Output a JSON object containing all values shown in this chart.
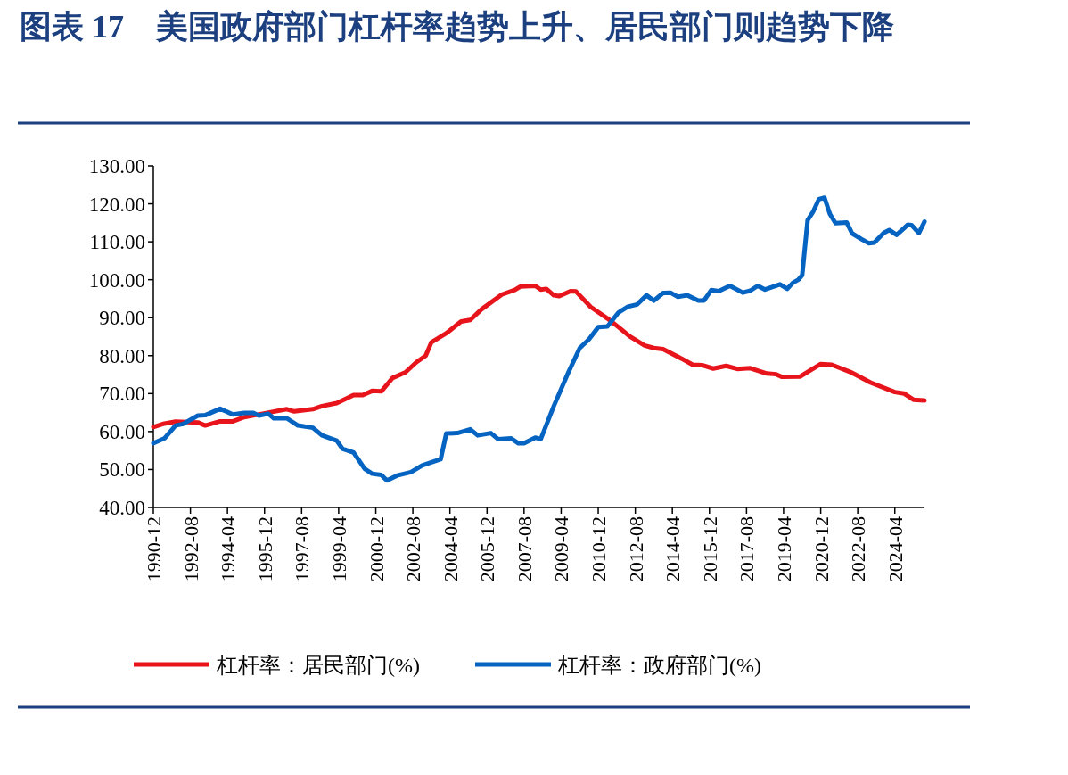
{
  "chart_data": {
    "type": "line",
    "title": "图表 17　美国政府部门杠杆率趋势上升、居民部门则趋势下降",
    "series": [
      {
        "name": "杠杆率：居民部门(%)",
        "color": "#e8141c",
        "x": [
          "1990-12",
          "1991-06",
          "1991-12",
          "1992-12",
          "1993-04",
          "1993-12",
          "1994-07",
          "1995-01",
          "1995-11",
          "1996-12",
          "1997-04",
          "1998-02",
          "1998-07",
          "1999-03",
          "1999-12",
          "2000-05",
          "2000-10",
          "2001-03",
          "2001-09",
          "2002-04",
          "2002-10",
          "2003-03",
          "2003-06",
          "2004-02",
          "2004-10",
          "2005-03",
          "2005-09",
          "2006-08",
          "2007-03",
          "2007-06",
          "2008-02",
          "2008-05",
          "2008-08",
          "2008-12",
          "2009-03",
          "2009-09",
          "2009-12",
          "2010-08",
          "2011-05",
          "2011-11",
          "2012-05",
          "2013-01",
          "2013-06",
          "2013-11",
          "2014-09",
          "2015-03",
          "2015-08",
          "2016-02",
          "2016-09",
          "2017-03",
          "2017-10",
          "2018-07",
          "2018-12",
          "2019-03",
          "2020-01",
          "2020-12",
          "2021-06",
          "2022-04",
          "2023-03",
          "2024-04",
          "2024-09",
          "2025-02",
          "2025-08"
        ],
        "values": [
          61.2,
          62.1,
          62.6,
          62.4,
          61.6,
          62.7,
          62.7,
          63.8,
          64.7,
          65.9,
          65.3,
          65.9,
          66.7,
          67.5,
          69.6,
          69.6,
          70.7,
          70.6,
          74.1,
          75.6,
          78.3,
          80.0,
          83.5,
          85.9,
          89.0,
          89.4,
          92.2,
          96.1,
          97.3,
          98.2,
          98.4,
          97.4,
          97.6,
          95.9,
          95.7,
          97.0,
          96.9,
          92.8,
          89.8,
          87.5,
          85.1,
          82.7,
          82.0,
          81.7,
          79.2,
          77.6,
          77.5,
          76.6,
          77.3,
          76.5,
          76.7,
          75.3,
          75.1,
          74.4,
          74.5,
          77.8,
          77.6,
          75.7,
          72.9,
          70.4,
          70.0,
          68.4,
          68.2
        ]
      },
      {
        "name": "杠杆率：政府部门(%)",
        "color": "#0563c1",
        "x": [
          "1990-12",
          "1991-06",
          "1991-12",
          "1992-04",
          "1992-12",
          "1993-04",
          "1993-12",
          "1994-07",
          "1995-01",
          "1995-06",
          "1995-09",
          "1996-02",
          "1996-05",
          "1996-12",
          "1997-06",
          "1998-02",
          "1998-07",
          "1999-03",
          "1999-06",
          "1999-12",
          "2000-06",
          "2000-10",
          "2001-03",
          "2001-06",
          "2001-12",
          "2002-07",
          "2003-01",
          "2003-06",
          "2003-11",
          "2004-02",
          "2004-08",
          "2005-03",
          "2005-07",
          "2006-02",
          "2006-06",
          "2007-01",
          "2007-05",
          "2007-08",
          "2008-02",
          "2008-05",
          "2008-12",
          "2009-08",
          "2010-02",
          "2010-07",
          "2010-12",
          "2011-05",
          "2011-11",
          "2012-04",
          "2012-09",
          "2013-02",
          "2013-06",
          "2013-11",
          "2014-03",
          "2014-07",
          "2014-12",
          "2015-06",
          "2015-09",
          "2016-01",
          "2016-05",
          "2016-11",
          "2017-06",
          "2017-10",
          "2018-02",
          "2018-06",
          "2019-02",
          "2019-06",
          "2019-09",
          "2019-12",
          "2020-02",
          "2020-05",
          "2020-08",
          "2020-11",
          "2021-02",
          "2021-05",
          "2021-08",
          "2022-02",
          "2022-05",
          "2022-10",
          "2023-02",
          "2023-05",
          "2023-10",
          "2024-01",
          "2024-05",
          "2024-11",
          "2025-01",
          "2025-05",
          "2025-08"
        ],
        "values": [
          56.9,
          58.2,
          61.6,
          62.0,
          64.2,
          64.3,
          66.0,
          64.5,
          64.9,
          64.9,
          64.2,
          64.7,
          63.5,
          63.5,
          61.6,
          61.0,
          59.0,
          57.6,
          55.5,
          54.5,
          50.2,
          48.9,
          48.6,
          47.1,
          48.5,
          49.3,
          51.1,
          51.9,
          52.7,
          59.5,
          59.6,
          60.6,
          59.0,
          59.6,
          58.0,
          58.2,
          56.9,
          56.9,
          58.4,
          58.0,
          66.7,
          75.7,
          82.0,
          84.3,
          87.5,
          87.7,
          91.4,
          92.9,
          93.5,
          95.9,
          94.5,
          96.5,
          96.6,
          95.5,
          95.9,
          94.5,
          94.5,
          97.3,
          97.0,
          98.4,
          96.6,
          97.1,
          98.4,
          97.4,
          98.8,
          97.6,
          99.2,
          100.0,
          101.2,
          115.7,
          118.0,
          121.2,
          121.6,
          117.3,
          114.9,
          115.1,
          112.2,
          110.7,
          109.6,
          109.8,
          112.3,
          113.1,
          111.8,
          114.5,
          114.4,
          112.3,
          115.3
        ]
      }
    ],
    "xlim": [
      "1990-12",
      "2025-08"
    ],
    "xticks": [
      "1990-12",
      "1992-08",
      "1994-04",
      "1995-12",
      "1997-08",
      "1999-04",
      "2000-12",
      "2002-08",
      "2004-04",
      "2005-12",
      "2007-08",
      "2009-04",
      "2010-12",
      "2012-08",
      "2014-04",
      "2015-12",
      "2017-08",
      "2019-04",
      "2020-12",
      "2022-08",
      "2024-04"
    ],
    "ylim": [
      40,
      130
    ],
    "yticks": [
      {
        "value": 40,
        "label": "40.00"
      },
      {
        "value": 50,
        "label": "50.00"
      },
      {
        "value": 60,
        "label": "60.00"
      },
      {
        "value": 70,
        "label": "70.00"
      },
      {
        "value": 80,
        "label": "80.00"
      },
      {
        "value": 90,
        "label": "90.00"
      },
      {
        "value": 100,
        "label": "100.00"
      },
      {
        "value": 110,
        "label": "110.00"
      },
      {
        "value": 120,
        "label": "120.00"
      },
      {
        "value": 130,
        "label": "130.00"
      }
    ],
    "grid": false,
    "legend": "bottom"
  }
}
